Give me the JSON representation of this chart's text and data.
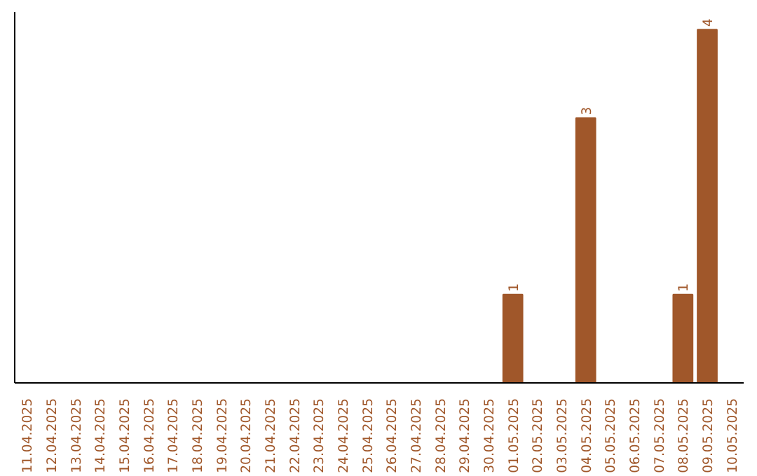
{
  "chart_data": {
    "type": "bar",
    "categories": [
      "11.04.2025",
      "12.04.2025",
      "13.04.2025",
      "14.04.2025",
      "15.04.2025",
      "16.04.2025",
      "17.04.2025",
      "18.04.2025",
      "19.04.2025",
      "20.04.2025",
      "21.04.2025",
      "22.04.2025",
      "23.04.2025",
      "24.04.2025",
      "25.04.2025",
      "26.04.2025",
      "27.04.2025",
      "28.04.2025",
      "29.04.2025",
      "30.04.2025",
      "01.05.2025",
      "02.05.2025",
      "03.05.2025",
      "04.05.2025",
      "05.05.2025",
      "06.05.2025",
      "07.05.2025",
      "08.05.2025",
      "09.05.2025",
      "10.05.2025"
    ],
    "values": [
      null,
      null,
      null,
      null,
      null,
      null,
      null,
      null,
      null,
      null,
      null,
      null,
      null,
      null,
      null,
      null,
      null,
      null,
      null,
      null,
      1,
      null,
      null,
      3,
      null,
      null,
      null,
      1,
      4,
      null
    ],
    "data_labels": true,
    "color": "#a0572a",
    "tick_labels": "x",
    "grid": false
  }
}
